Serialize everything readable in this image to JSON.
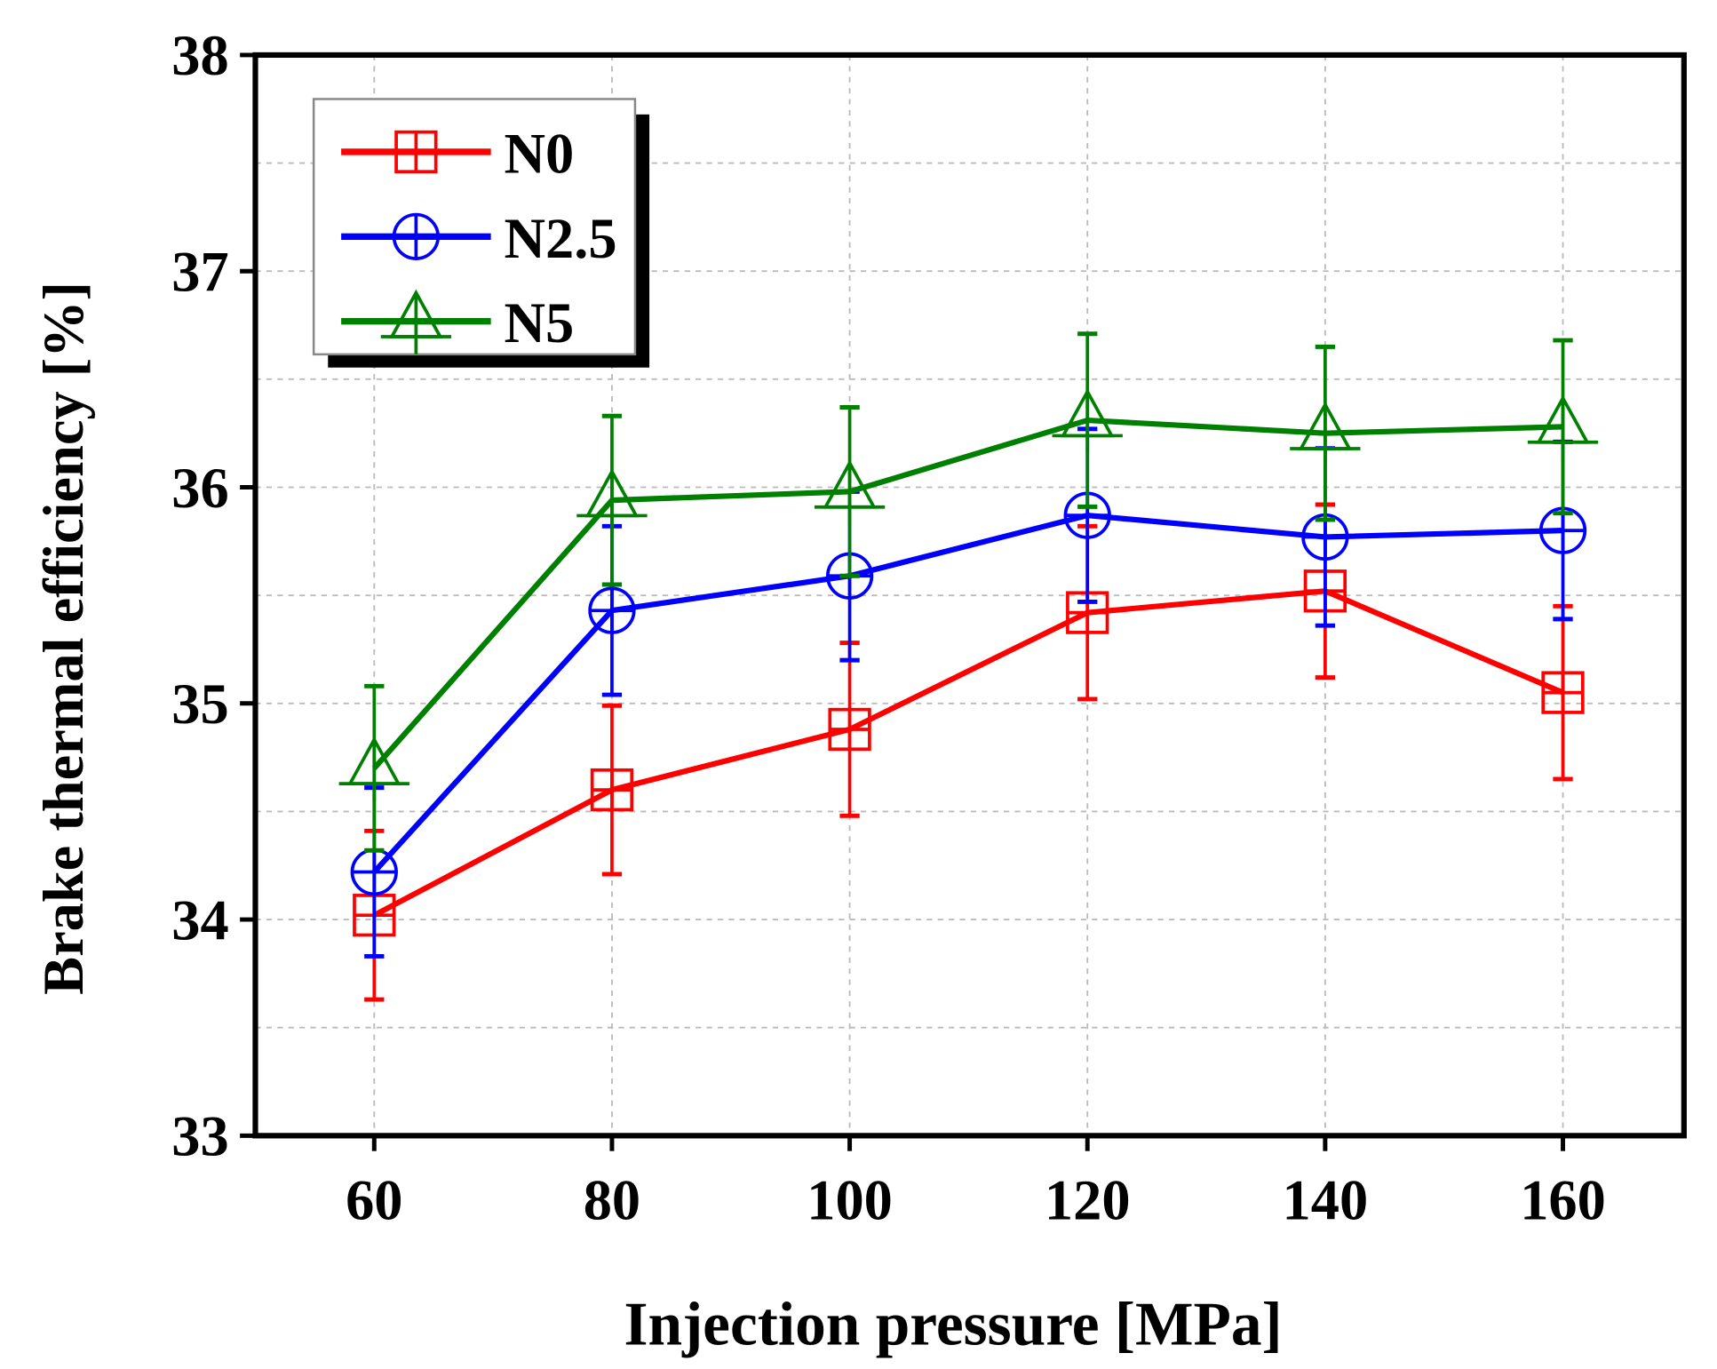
{
  "chart_data": {
    "type": "line",
    "title": "",
    "xlabel": "Injection pressure [MPa]",
    "ylabel": "Brake thermal efficiency [%]",
    "xlim": [
      50,
      170
    ],
    "ylim": [
      33,
      38
    ],
    "xticks": [
      60,
      80,
      100,
      120,
      140,
      160
    ],
    "yticks": [
      33,
      34,
      35,
      36,
      37,
      38
    ],
    "grid": true,
    "legend_position": "top-left",
    "x": [
      60,
      80,
      100,
      120,
      140,
      160
    ],
    "series": [
      {
        "name": "N0",
        "color": "#ff0000",
        "marker": "square-plus",
        "values": [
          34.02,
          34.6,
          34.88,
          35.42,
          35.52,
          35.05
        ],
        "errors": [
          0.39,
          0.39,
          0.4,
          0.4,
          0.4,
          0.4
        ]
      },
      {
        "name": "N2.5",
        "color": "#0000ff",
        "marker": "circle-plus",
        "values": [
          34.22,
          35.43,
          35.59,
          35.87,
          35.77,
          35.8
        ],
        "errors": [
          0.39,
          0.39,
          0.39,
          0.4,
          0.41,
          0.41
        ]
      },
      {
        "name": "N5",
        "color": "#008000",
        "marker": "triangle-plus",
        "values": [
          34.7,
          35.94,
          35.98,
          36.31,
          36.25,
          36.28
        ],
        "errors": [
          0.38,
          0.39,
          0.39,
          0.4,
          0.4,
          0.4
        ]
      }
    ]
  }
}
